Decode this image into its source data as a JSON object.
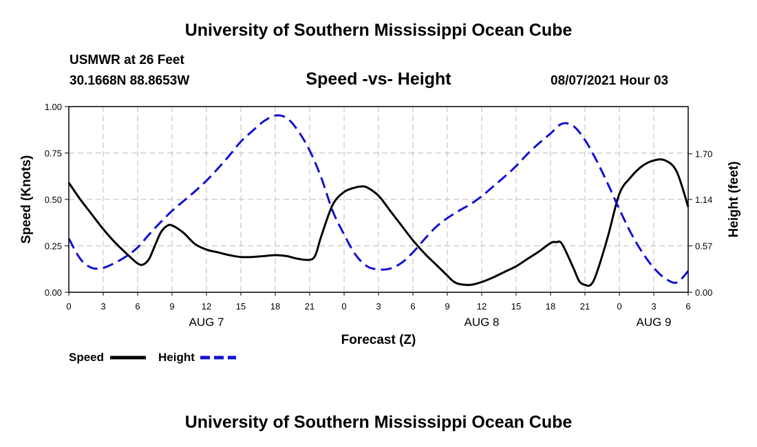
{
  "header": {
    "title": "University of Southern Mississippi Ocean Cube",
    "station": "USMWR at 26 Feet",
    "coords": "30.1668N  88.8653W",
    "chart_title": "Speed -vs- Height",
    "datetime": "08/07/2021 Hour 03"
  },
  "footer": {
    "title": "University of Southern Mississippi Ocean Cube"
  },
  "colors": {
    "speed": "#000000",
    "height": "#1010d0",
    "grid": "#bbbbbb"
  },
  "chart_data": {
    "type": "line",
    "title": "Speed -vs- Height",
    "xlabel": "Forecast (Z)",
    "ylabel": "Speed (Knots)",
    "y2label": "Height (feet)",
    "x_unit": "hours from AUG 7 00Z",
    "xlim": [
      0,
      54
    ],
    "ylim": [
      0,
      1.0
    ],
    "y2lim": [
      0,
      2.28
    ],
    "x_ticks": [
      0,
      3,
      6,
      9,
      12,
      15,
      18,
      21,
      24,
      27,
      30,
      33,
      36,
      39,
      42,
      45,
      48,
      51,
      54
    ],
    "x_tick_labels": [
      "0",
      "3",
      "6",
      "9",
      "12",
      "15",
      "18",
      "21",
      "0",
      "3",
      "6",
      "9",
      "12",
      "15",
      "18",
      "21",
      "0",
      "3",
      "6"
    ],
    "date_labels": [
      {
        "x": 12,
        "label": "AUG 7"
      },
      {
        "x": 36,
        "label": "AUG 8"
      },
      {
        "x": 51,
        "label": "AUG 9"
      }
    ],
    "y_ticks": [
      0,
      0.25,
      0.5,
      0.75,
      1.0
    ],
    "y_tick_labels": [
      "0.00",
      "0.25",
      "0.50",
      "0.75",
      "1.00"
    ],
    "y2_ticks": [
      0,
      0.57,
      1.14,
      1.7
    ],
    "y2_tick_labels": [
      "0.00",
      "0.57",
      "1.14",
      "1.70"
    ],
    "grid": true,
    "legend": [
      "Speed",
      "Height"
    ],
    "series": [
      {
        "name": "Speed",
        "axis": "left",
        "style": "solid",
        "x": [
          0,
          1,
          2,
          3,
          4,
          5,
          6,
          6.5,
          7,
          7.5,
          8,
          8.5,
          9,
          10,
          11,
          12,
          13,
          14,
          15,
          16,
          17,
          18,
          19,
          20,
          21,
          21.5,
          22,
          23,
          24,
          25,
          25.5,
          26,
          27,
          28,
          29,
          30,
          31,
          32,
          33,
          33.5,
          34,
          35,
          36,
          37,
          38,
          39,
          40,
          41,
          42,
          42.5,
          43,
          44,
          44.5,
          45,
          45.5,
          46,
          47,
          48,
          49,
          50,
          51,
          52,
          53,
          54
        ],
        "values": [
          0.59,
          0.5,
          0.42,
          0.34,
          0.27,
          0.21,
          0.155,
          0.15,
          0.18,
          0.25,
          0.32,
          0.355,
          0.36,
          0.32,
          0.26,
          0.23,
          0.215,
          0.2,
          0.19,
          0.19,
          0.195,
          0.2,
          0.195,
          0.18,
          0.175,
          0.2,
          0.3,
          0.47,
          0.54,
          0.565,
          0.57,
          0.565,
          0.52,
          0.44,
          0.36,
          0.28,
          0.21,
          0.15,
          0.09,
          0.06,
          0.045,
          0.04,
          0.055,
          0.08,
          0.11,
          0.14,
          0.18,
          0.22,
          0.265,
          0.27,
          0.26,
          0.13,
          0.06,
          0.04,
          0.04,
          0.1,
          0.3,
          0.53,
          0.62,
          0.68,
          0.71,
          0.71,
          0.65,
          0.46
        ]
      },
      {
        "name": "Height",
        "axis": "right",
        "style": "dashed",
        "x": [
          0,
          1,
          2,
          3,
          4,
          5,
          6,
          7,
          8,
          9,
          10,
          11,
          12,
          13,
          14,
          15,
          16,
          17,
          18,
          19,
          20,
          21,
          22,
          23,
          24,
          25,
          26,
          27,
          28,
          29,
          30,
          31,
          32,
          33,
          34,
          35,
          36,
          37,
          38,
          39,
          40,
          41,
          42,
          43,
          44,
          45,
          46,
          47,
          48,
          49,
          50,
          51,
          52,
          53,
          54
        ],
        "values": [
          0.66,
          0.41,
          0.3,
          0.3,
          0.36,
          0.44,
          0.55,
          0.71,
          0.86,
          1.0,
          1.12,
          1.24,
          1.37,
          1.52,
          1.68,
          1.85,
          1.98,
          2.1,
          2.17,
          2.14,
          1.98,
          1.74,
          1.41,
          1.0,
          0.71,
          0.46,
          0.32,
          0.28,
          0.29,
          0.36,
          0.49,
          0.65,
          0.8,
          0.91,
          1.0,
          1.08,
          1.18,
          1.3,
          1.42,
          1.55,
          1.7,
          1.83,
          1.95,
          2.07,
          2.04,
          1.87,
          1.62,
          1.33,
          1.02,
          0.73,
          0.49,
          0.3,
          0.17,
          0.12,
          0.26
        ]
      }
    ]
  }
}
